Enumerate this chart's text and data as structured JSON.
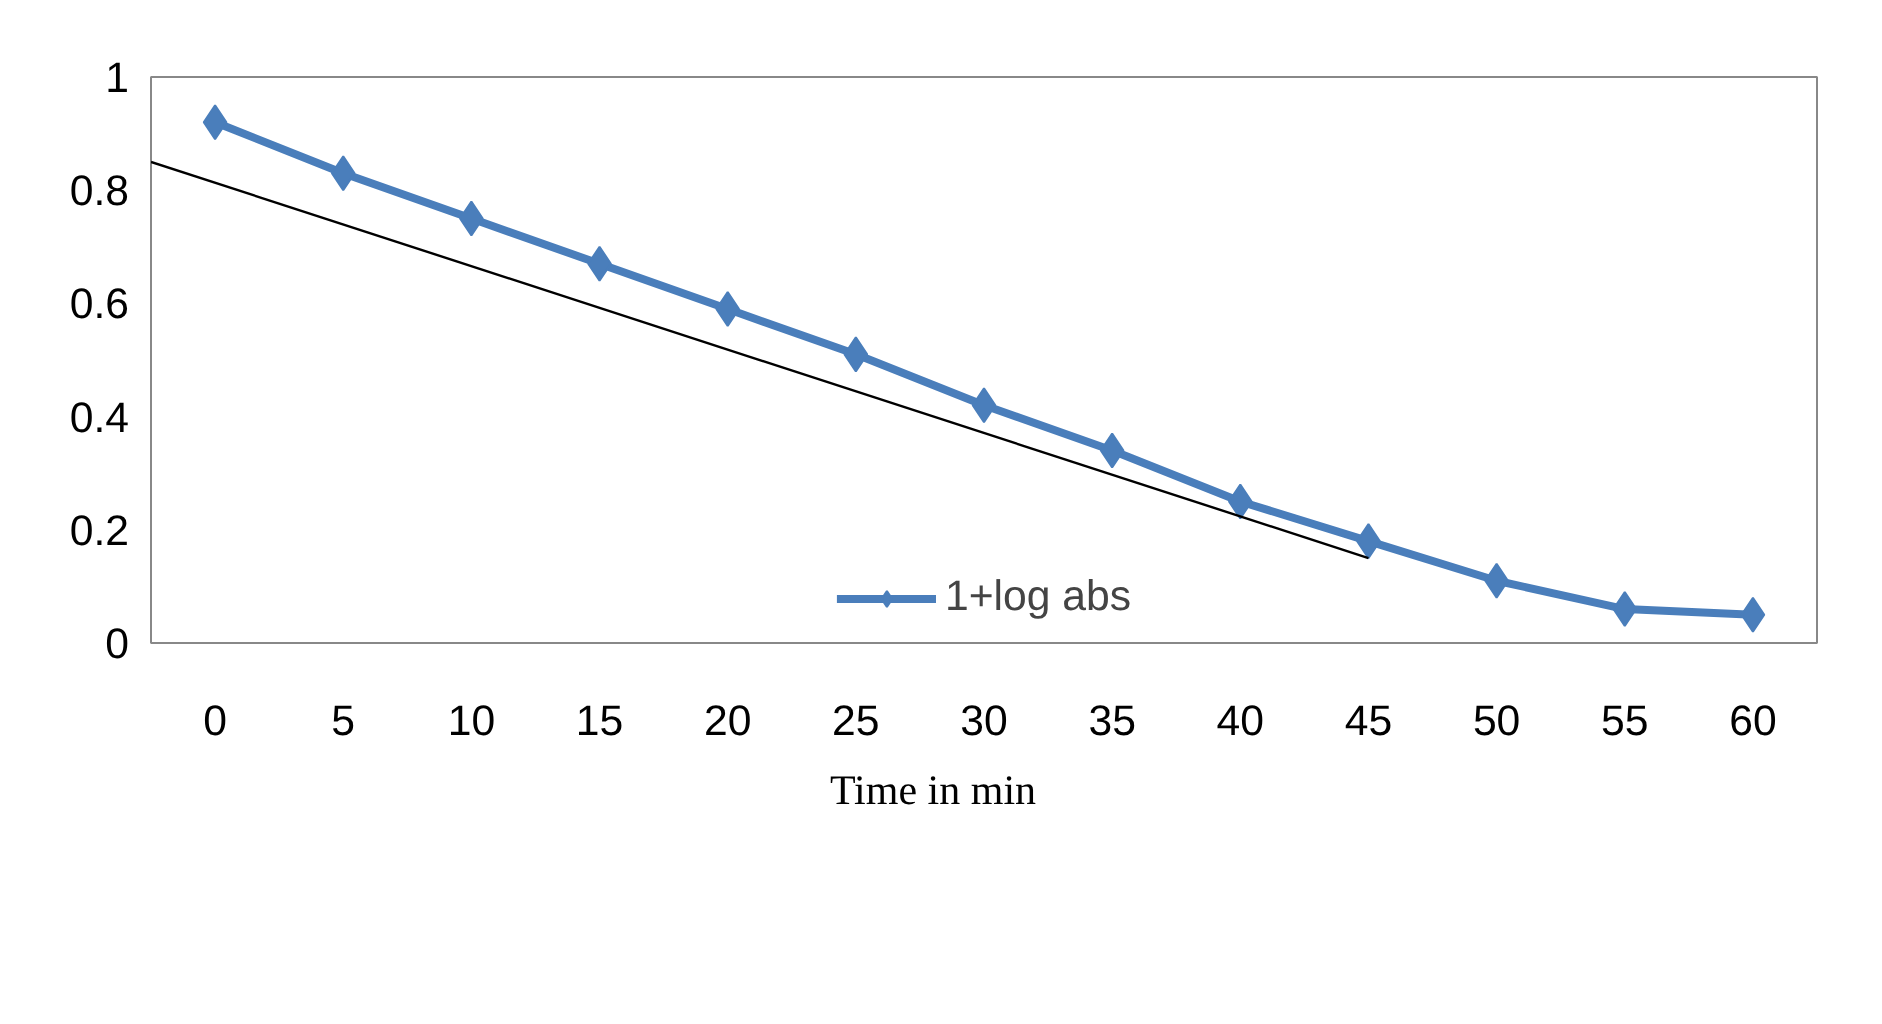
{
  "chart_data": {
    "type": "line",
    "xlabel": "Time in min",
    "x": [
      0,
      5,
      10,
      15,
      20,
      25,
      30,
      35,
      40,
      45,
      50,
      55,
      60
    ],
    "xlim": [
      -2.5,
      62.5
    ],
    "xticks": [
      0,
      5,
      10,
      15,
      20,
      25,
      30,
      35,
      40,
      45,
      50,
      55,
      60
    ],
    "ylim": [
      0,
      1
    ],
    "yticks": [
      0,
      0.2,
      0.4,
      0.6,
      0.8,
      1
    ],
    "series": [
      {
        "name": "1+log abs",
        "color": "#4a7ebb",
        "marker": "diamond",
        "values": [
          0.92,
          0.83,
          0.75,
          0.67,
          0.59,
          0.51,
          0.42,
          0.34,
          0.25,
          0.18,
          0.11,
          0.06,
          0.05
        ]
      },
      {
        "type": "line",
        "color": "#000000",
        "marker": "none",
        "x": [
          -2.5,
          45
        ],
        "values": [
          0.85,
          0.15
        ]
      }
    ],
    "grid": false,
    "legend": "bottom"
  }
}
